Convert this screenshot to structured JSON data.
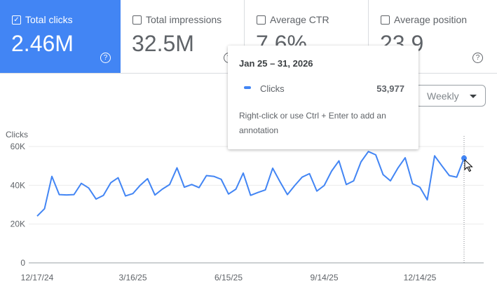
{
  "metrics": [
    {
      "label": "Total clicks",
      "value": "2.46M",
      "checked": true
    },
    {
      "label": "Total impressions",
      "value": "32.5M",
      "checked": false
    },
    {
      "label": "Average CTR",
      "value": "7.6%",
      "checked": false
    },
    {
      "label": "Average position",
      "value": "23.9",
      "checked": false
    }
  ],
  "granularity_select": "Weekly",
  "tooltip": {
    "date": "Jan 25 – 31, 2026",
    "series": "Clicks",
    "value": "53,977",
    "hint": "Right-click or use Ctrl + Enter to add an annotation"
  },
  "colors": {
    "accent": "#4285f4"
  },
  "chart_data": {
    "type": "line",
    "ylabel": "Clicks",
    "ylim": [
      0,
      60000
    ],
    "yticks": [
      "0",
      "20K",
      "40K",
      "60K"
    ],
    "xticks": [
      {
        "index": 0,
        "label": "12/17/24"
      },
      {
        "index": 13,
        "label": "3/16/25"
      },
      {
        "index": 26,
        "label": "6/15/25"
      },
      {
        "index": 39,
        "label": "9/14/25"
      },
      {
        "index": 52,
        "label": "12/14/25"
      }
    ],
    "grid": true,
    "highlighted_index": 58,
    "values": [
      24100,
      27900,
      44600,
      35200,
      35000,
      35200,
      41000,
      38600,
      32900,
      34800,
      41300,
      43900,
      34500,
      35700,
      40000,
      43400,
      35000,
      38000,
      40400,
      49000,
      39000,
      40400,
      38800,
      45000,
      44600,
      43100,
      35500,
      38000,
      46300,
      34800,
      36300,
      37600,
      48800,
      41800,
      35200,
      39900,
      44200,
      46000,
      37000,
      39900,
      47300,
      52600,
      40400,
      42300,
      52100,
      57400,
      55700,
      45500,
      42300,
      48800,
      54200,
      40800,
      39000,
      32500,
      55200,
      50000,
      45000,
      44200,
      53977
    ]
  }
}
